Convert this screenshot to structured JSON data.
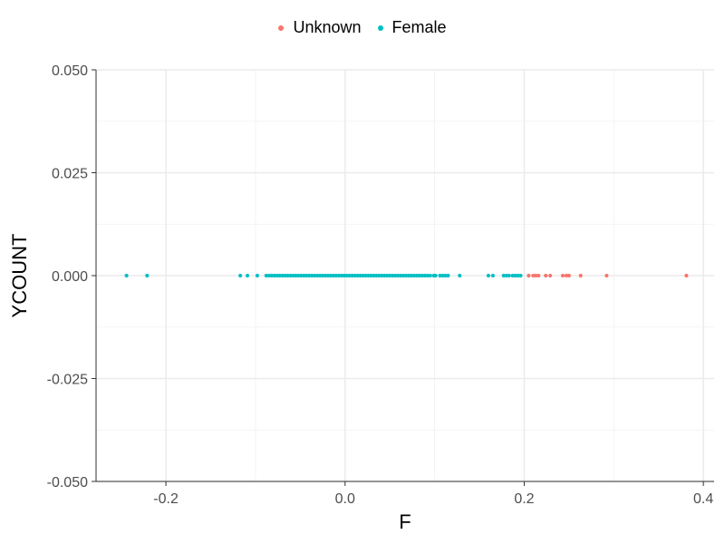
{
  "chart_data": {
    "type": "scatter",
    "xlabel": "F",
    "ylabel": "YCOUNT",
    "xlim": [
      -0.278,
      0.412
    ],
    "ylim": [
      -0.05,
      0.05
    ],
    "x_ticks": [
      -0.2,
      0.0,
      0.2,
      0.4
    ],
    "x_tick_labels": [
      "-0.2",
      "0.0",
      "0.2",
      "0.4"
    ],
    "y_ticks": [
      0.05,
      0.025,
      0.0,
      -0.025,
      -0.05
    ],
    "y_tick_labels": [
      "0.050",
      "0.025",
      "0.000",
      "-0.025",
      "-0.050"
    ],
    "grid": true,
    "legend_position": "top",
    "series": [
      {
        "name": "Unknown",
        "color": "#F8766D",
        "x": [
          0.205,
          0.21,
          0.213,
          0.216,
          0.224,
          0.229,
          0.243,
          0.247,
          0.25,
          0.263,
          0.292,
          0.381
        ],
        "y": [
          0,
          0,
          0,
          0,
          0,
          0,
          0,
          0,
          0,
          0,
          0,
          0
        ]
      },
      {
        "name": "Female",
        "color": "#00BFC4",
        "x": [
          -0.244,
          -0.221,
          -0.117,
          -0.109,
          -0.098,
          -0.088,
          -0.085,
          -0.082,
          -0.079,
          -0.076,
          -0.073,
          -0.07,
          -0.067,
          -0.064,
          -0.061,
          -0.058,
          -0.055,
          -0.052,
          -0.049,
          -0.046,
          -0.043,
          -0.04,
          -0.037,
          -0.034,
          -0.031,
          -0.028,
          -0.025,
          -0.022,
          -0.019,
          -0.016,
          -0.013,
          -0.01,
          -0.007,
          -0.004,
          -0.001,
          0.002,
          0.005,
          0.008,
          0.011,
          0.014,
          0.017,
          0.02,
          0.023,
          0.026,
          0.029,
          0.032,
          0.035,
          0.038,
          0.041,
          0.044,
          0.047,
          0.05,
          0.053,
          0.056,
          0.059,
          0.062,
          0.065,
          0.068,
          0.071,
          0.074,
          0.077,
          0.08,
          0.083,
          0.086,
          0.089,
          0.092,
          0.095,
          0.099,
          0.101,
          0.106,
          0.109,
          0.112,
          0.115,
          0.128,
          0.16,
          0.165,
          0.177,
          0.18,
          0.183,
          0.187,
          0.19,
          0.193,
          0.196
        ],
        "y": [
          0,
          0,
          0,
          0,
          0,
          0,
          0,
          0,
          0,
          0,
          0,
          0,
          0,
          0,
          0,
          0,
          0,
          0,
          0,
          0,
          0,
          0,
          0,
          0,
          0,
          0,
          0,
          0,
          0,
          0,
          0,
          0,
          0,
          0,
          0,
          0,
          0,
          0,
          0,
          0,
          0,
          0,
          0,
          0,
          0,
          0,
          0,
          0,
          0,
          0,
          0,
          0,
          0,
          0,
          0,
          0,
          0,
          0,
          0,
          0,
          0,
          0,
          0,
          0,
          0,
          0,
          0,
          0,
          0,
          0,
          0,
          0,
          0,
          0,
          0,
          0,
          0,
          0,
          0,
          0,
          0,
          0,
          0
        ]
      }
    ]
  }
}
